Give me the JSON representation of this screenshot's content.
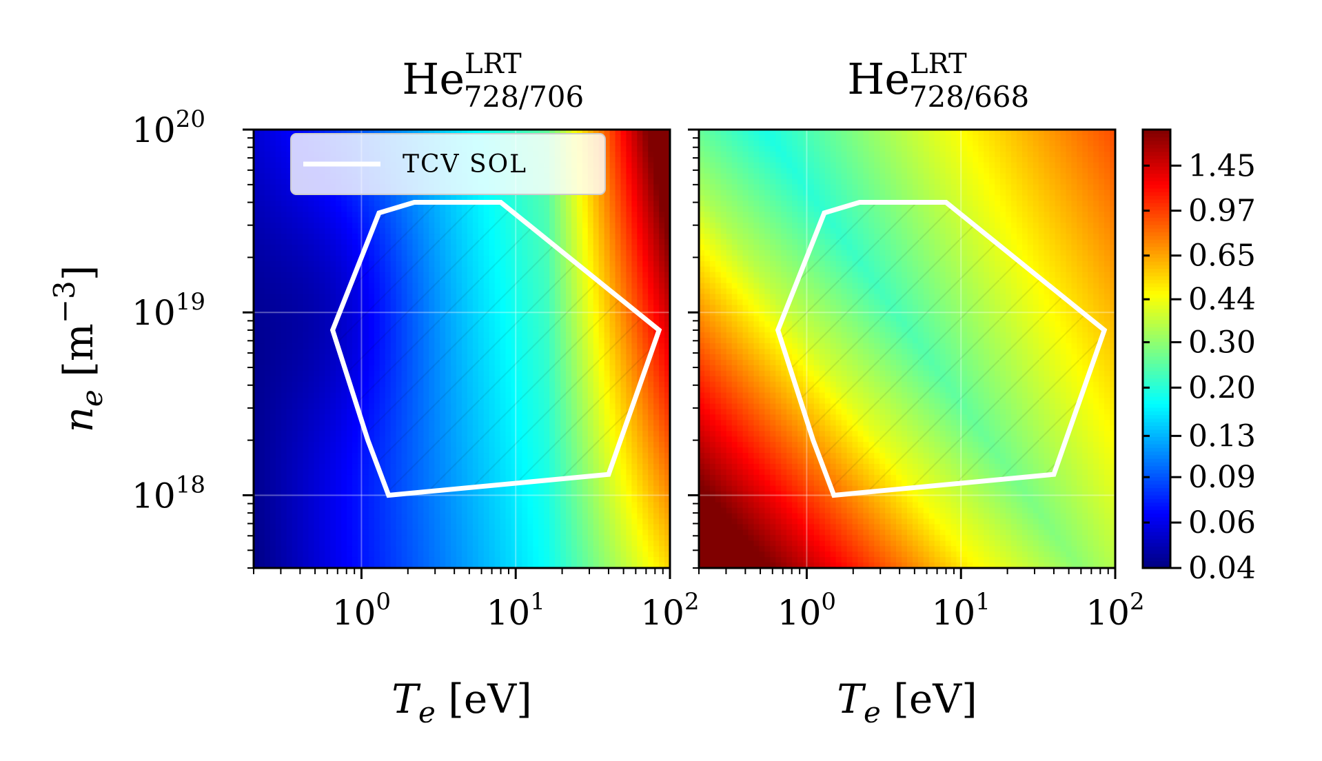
{
  "chart_data": [
    {
      "type": "heatmap",
      "title": {
        "base": "He",
        "sup": "LRT",
        "sub": "728/706"
      },
      "xlabel": {
        "symbol": "T",
        "sub": "e",
        "unit": " [eV]"
      },
      "ylabel": {
        "symbol": "n",
        "sub": "e",
        "unit": " [m",
        "unit_sup": "−3",
        "unit_close": "]"
      },
      "x_scale": "log",
      "y_scale": "log",
      "xlim": [
        0.2,
        100
      ],
      "ylim": [
        4e+17,
        1e+20
      ],
      "x_ticks": [
        {
          "value": 1,
          "base": "10",
          "exp": "0"
        },
        {
          "value": 10,
          "base": "10",
          "exp": "1"
        },
        {
          "value": 100,
          "base": "10",
          "exp": "2"
        }
      ],
      "y_ticks": [
        {
          "value": 1e+18,
          "base": "10",
          "exp": "18"
        },
        {
          "value": 1e+19,
          "base": "10",
          "exp": "19"
        },
        {
          "value": 1e+20,
          "base": "10",
          "exp": "20"
        }
      ],
      "grid": true,
      "colormap": "jet",
      "legend": {
        "entries": [
          {
            "label": "TCV SOL",
            "color": "#ffffff"
          }
        ],
        "placement": "upper-left"
      },
      "region": {
        "name": "TCV SOL",
        "hatched": true,
        "points": [
          [
            2.2,
            4e+19
          ],
          [
            8,
            4e+19
          ],
          [
            85,
            8e+18
          ],
          [
            40,
            1.3e+18
          ],
          [
            1.5,
            1e+18
          ],
          [
            1.1,
            2e+18
          ],
          [
            0.65,
            8e+18
          ],
          [
            1.3,
            3.5e+19
          ]
        ]
      },
      "field_notes": "min ~0.05 near (Te≈0.6 eV, ne≈1e19), rising to ~1.5 at Te≈100 eV, ne≈1e20"
    },
    {
      "type": "heatmap",
      "title": {
        "base": "He",
        "sup": "LRT",
        "sub": "728/668"
      },
      "xlabel": {
        "symbol": "T",
        "sub": "e",
        "unit": " [eV]"
      },
      "x_scale": "log",
      "y_scale": "log",
      "xlim": [
        0.2,
        100
      ],
      "ylim": [
        4e+17,
        1e+20
      ],
      "x_ticks": [
        {
          "value": 1,
          "base": "10",
          "exp": "0"
        },
        {
          "value": 10,
          "base": "10",
          "exp": "1"
        },
        {
          "value": 100,
          "base": "10",
          "exp": "2"
        }
      ],
      "grid": true,
      "colormap": "jet",
      "region": {
        "name": "TCV SOL",
        "hatched": true,
        "points": [
          [
            2.2,
            4e+19
          ],
          [
            8,
            4e+19
          ],
          [
            85,
            8e+18
          ],
          [
            40,
            1.3e+18
          ],
          [
            1.5,
            1e+18
          ],
          [
            1.1,
            2e+18
          ],
          [
            0.65,
            8e+18
          ],
          [
            1.3,
            3.5e+19
          ]
        ]
      }
    }
  ],
  "colorbar": {
    "scale": "log",
    "range": [
      0.04,
      2.0
    ],
    "ticks": [
      0.04,
      0.06,
      0.09,
      0.13,
      0.2,
      0.3,
      0.44,
      0.65,
      0.97,
      1.45
    ],
    "tick_labels": [
      "0.04",
      "0.06",
      "0.09",
      "0.13",
      "0.20",
      "0.30",
      "0.44",
      "0.65",
      "0.97",
      "1.45"
    ]
  }
}
